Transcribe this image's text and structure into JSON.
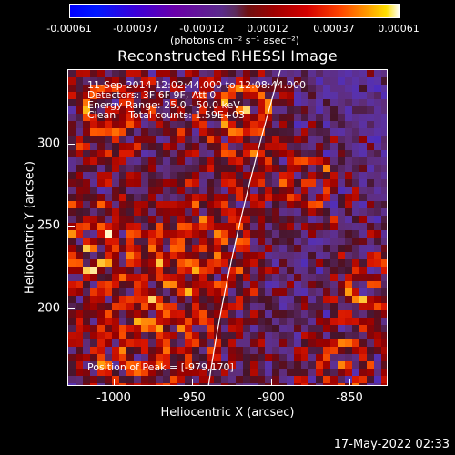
{
  "colorbar": {
    "tick_labels": [
      "-0.00061",
      "-0.00037",
      "-0.00012",
      "0.00012",
      "0.00037",
      "0.00061"
    ],
    "unit_label": "(photons cm⁻² s⁻¹ asec⁻²)"
  },
  "title": "Reconstructed RHESSI Image",
  "annotations": {
    "line1": "11-Sep-2014 12:02:44.000 to 12:08:44.000",
    "line2": "Detectors: 3F 6F 9F, Att 0",
    "line3": "Energy Range: 25.0 - 50.0 keV",
    "line4": "Clean    Total counts: 1.59E+03",
    "peak": "Position of Peak = [-979,170]"
  },
  "axes": {
    "xlabel": "Heliocentric X (arcsec)",
    "ylabel": "Heliocentric Y (arcsec)",
    "x_ticks": [
      "-1000",
      "-950",
      "-900",
      "-850"
    ],
    "y_ticks": [
      "300",
      "250",
      "200"
    ],
    "x_range": [
      -1025,
      -832
    ],
    "y_range": [
      150,
      341
    ]
  },
  "timestamp": "17-May-2022 02:33",
  "colors": {
    "background": "#000000",
    "foreground": "#ffffff"
  }
}
